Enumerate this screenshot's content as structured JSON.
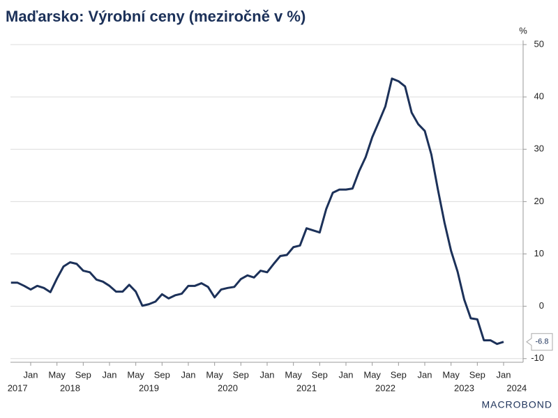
{
  "chart_data": {
    "type": "line",
    "title": "Maďarsko: Výrobní ceny (meziročně v %)",
    "y_unit": "%",
    "source": "MACROBOND",
    "x": [
      "2017-10",
      "2017-11",
      "2017-12",
      "2018-01",
      "2018-02",
      "2018-03",
      "2018-04",
      "2018-05",
      "2018-06",
      "2018-07",
      "2018-08",
      "2018-09",
      "2018-10",
      "2018-11",
      "2018-12",
      "2019-01",
      "2019-02",
      "2019-03",
      "2019-04",
      "2019-05",
      "2019-06",
      "2019-07",
      "2019-08",
      "2019-09",
      "2019-10",
      "2019-11",
      "2019-12",
      "2020-01",
      "2020-02",
      "2020-03",
      "2020-04",
      "2020-05",
      "2020-06",
      "2020-07",
      "2020-08",
      "2020-09",
      "2020-10",
      "2020-11",
      "2020-12",
      "2021-01",
      "2021-02",
      "2021-03",
      "2021-04",
      "2021-05",
      "2021-06",
      "2021-07",
      "2021-08",
      "2021-09",
      "2021-10",
      "2021-11",
      "2021-12",
      "2022-01",
      "2022-02",
      "2022-03",
      "2022-04",
      "2022-05",
      "2022-06",
      "2022-07",
      "2022-08",
      "2022-09",
      "2022-10",
      "2022-11",
      "2022-12",
      "2023-01",
      "2023-02",
      "2023-03",
      "2023-04",
      "2023-05",
      "2023-06",
      "2023-07",
      "2023-08",
      "2023-09",
      "2023-10",
      "2023-11",
      "2023-12",
      "2024-01"
    ],
    "series": [
      {
        "name": "Výrobní ceny",
        "color": "#1c3159",
        "values": [
          4.5,
          4.5,
          3.9,
          3.2,
          3.9,
          3.5,
          2.7,
          5.3,
          7.6,
          8.4,
          8.1,
          6.8,
          6.5,
          5.1,
          4.7,
          3.9,
          2.8,
          2.8,
          4.1,
          2.8,
          0.1,
          0.4,
          0.9,
          2.3,
          1.5,
          2.1,
          2.4,
          3.9,
          3.9,
          4.4,
          3.7,
          1.7,
          3.2,
          3.5,
          3.7,
          5.2,
          5.9,
          5.5,
          6.8,
          6.5,
          8.1,
          9.6,
          9.8,
          11.3,
          11.6,
          14.9,
          14.5,
          14.1,
          18.6,
          21.7,
          22.3,
          22.3,
          22.5,
          25.8,
          28.5,
          32.3,
          35.2,
          38.2,
          43.5,
          43.0,
          42.0,
          37.0,
          34.8,
          33.5,
          29.0,
          22.3,
          16.0,
          10.6,
          6.6,
          1.3,
          -2.3,
          -2.5,
          -6.5,
          -6.5,
          -7.2,
          -6.8
        ]
      }
    ],
    "xticks": [
      {
        "value": "2018-01",
        "label": "Jan"
      },
      {
        "value": "2018-05",
        "label": "May"
      },
      {
        "value": "2018-09",
        "label": "Sep"
      },
      {
        "value": "2019-01",
        "label": "Jan"
      },
      {
        "value": "2019-05",
        "label": "May"
      },
      {
        "value": "2019-09",
        "label": "Sep"
      },
      {
        "value": "2020-01",
        "label": "Jan"
      },
      {
        "value": "2020-05",
        "label": "May"
      },
      {
        "value": "2020-09",
        "label": "Sep"
      },
      {
        "value": "2021-01",
        "label": "Jan"
      },
      {
        "value": "2021-05",
        "label": "May"
      },
      {
        "value": "2021-09",
        "label": "Sep"
      },
      {
        "value": "2022-01",
        "label": "Jan"
      },
      {
        "value": "2022-05",
        "label": "May"
      },
      {
        "value": "2022-09",
        "label": "Sep"
      },
      {
        "value": "2023-01",
        "label": "Jan"
      },
      {
        "value": "2023-05",
        "label": "May"
      },
      {
        "value": "2023-09",
        "label": "Sep"
      },
      {
        "value": "2024-01",
        "label": "Jan"
      }
    ],
    "year_labels": [
      {
        "value": "2017-11",
        "label": "2017"
      },
      {
        "value": "2018-07",
        "label": "2018"
      },
      {
        "value": "2019-07",
        "label": "2019"
      },
      {
        "value": "2020-07",
        "label": "2020"
      },
      {
        "value": "2021-07",
        "label": "2021"
      },
      {
        "value": "2022-07",
        "label": "2022"
      },
      {
        "value": "2023-07",
        "label": "2023"
      },
      {
        "value": "2024-03",
        "label": "2024"
      }
    ],
    "ylim": [
      -10.7,
      50
    ],
    "yticks": [
      -10,
      0,
      10,
      20,
      30,
      40,
      50
    ],
    "grid": true,
    "last_value_callout": true
  }
}
